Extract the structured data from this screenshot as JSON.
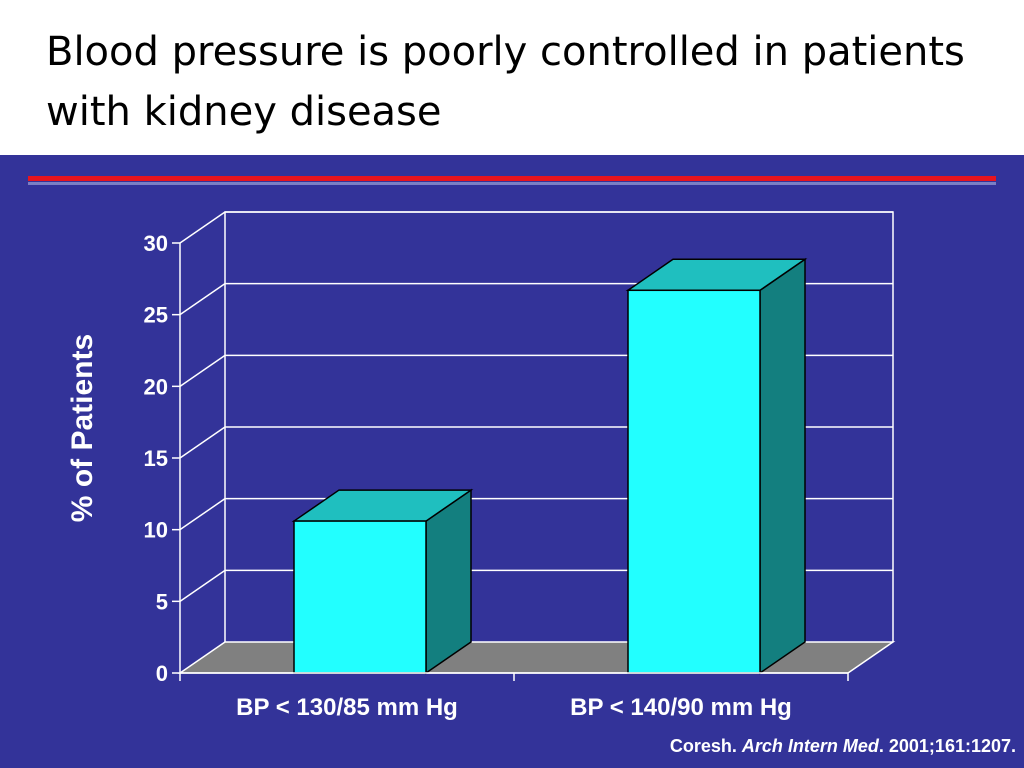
{
  "slide": {
    "title": "Blood pressure is poorly controlled in patients with kidney disease",
    "citation": {
      "author": "Coresh.",
      "journal": "Arch Intern Med",
      "details": ". 2001;161:1207."
    }
  },
  "colors": {
    "panel_background": "#333399",
    "accent_line": "#e8141e",
    "bar_front": "#22ffff",
    "bar_top": "#1fbfbf",
    "bar_side": "#137f7f",
    "floor": "#808080",
    "grid": "#ffffff",
    "text": "#ffffff"
  },
  "chart_data": {
    "type": "bar",
    "style": "3d",
    "categories": [
      "BP < 130/85 mm Hg",
      "BP < 140/90 mm Hg"
    ],
    "values": [
      10.6,
      26.7
    ],
    "title": "",
    "xlabel": "",
    "ylabel": "% of Patients",
    "ylim": [
      0,
      30
    ],
    "yticks": [
      0,
      5,
      10,
      15,
      20,
      25,
      30
    ],
    "grid": true,
    "legend": false
  }
}
